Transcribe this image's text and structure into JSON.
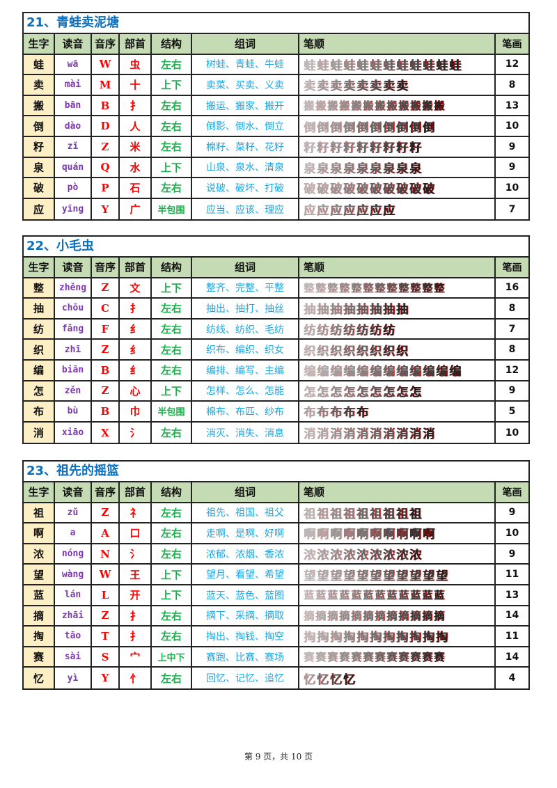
{
  "headers": [
    "生字",
    "读音",
    "音序",
    "部首",
    "结构",
    "组词",
    "笔顺",
    "笔画"
  ],
  "lessons": [
    {
      "title": "21、青蛙卖泥塘",
      "rows": [
        [
          "蛙",
          "wā",
          "W",
          "虫",
          "左右",
          "树蛙、青蛙、牛蛙",
          "12"
        ],
        [
          "卖",
          "mài",
          "M",
          "十",
          "上下",
          "卖菜、买卖、义卖",
          "8"
        ],
        [
          "搬",
          "bān",
          "B",
          "扌",
          "左右",
          "搬运、搬家、搬开",
          "13"
        ],
        [
          "倒",
          "dào",
          "D",
          "人",
          "左右",
          "倒影、倒水、倒立",
          "10"
        ],
        [
          "籽",
          "zǐ",
          "Z",
          "米",
          "左右",
          "棉籽、菜籽、花籽",
          "9"
        ],
        [
          "泉",
          "quán",
          "Q",
          "水",
          "上下",
          "山泉、泉水、清泉",
          "9"
        ],
        [
          "破",
          "pò",
          "P",
          "石",
          "左右",
          "说破、破坏、打破",
          "10"
        ],
        [
          "应",
          "yīng",
          "Y",
          "广",
          "半包围",
          "应当、应该、理应",
          "7"
        ]
      ]
    },
    {
      "title": "22、小毛虫",
      "rows": [
        [
          "整",
          "zhěng",
          "Z",
          "文",
          "上下",
          "整齐、完整、平整",
          "16"
        ],
        [
          "抽",
          "chōu",
          "C",
          "扌",
          "左右",
          "抽出、抽打、抽丝",
          "8"
        ],
        [
          "纺",
          "fǎng",
          "F",
          "纟",
          "左右",
          "纺线、纺织、毛纺",
          "7"
        ],
        [
          "织",
          "zhī",
          "Z",
          "纟",
          "左右",
          "织布、编织、织女",
          "8"
        ],
        [
          "编",
          "biān",
          "B",
          "纟",
          "左右",
          "编排、编写、主编",
          "12"
        ],
        [
          "怎",
          "zěn",
          "Z",
          "心",
          "上下",
          "怎样、怎么、怎能",
          "9"
        ],
        [
          "布",
          "bù",
          "B",
          "巾",
          "半包围",
          "棉布、布匹、纱布",
          "5"
        ],
        [
          "消",
          "xiāo",
          "X",
          "氵",
          "左右",
          "消灭、消失、消息",
          "10"
        ]
      ]
    },
    {
      "title": "23、祖先的摇篮",
      "rows": [
        [
          "祖",
          "zǔ",
          "Z",
          "礻",
          "左右",
          "祖先、祖国、祖父",
          "9"
        ],
        [
          "啊",
          "a",
          "A",
          "口",
          "左右",
          "走啊、是啊、好啊",
          "10"
        ],
        [
          "浓",
          "nóng",
          "N",
          "氵",
          "左右",
          "浓郁、浓烟、香浓",
          "9"
        ],
        [
          "望",
          "wàng",
          "W",
          "王",
          "上下",
          "望月、看望、希望",
          "11"
        ],
        [
          "蓝",
          "lán",
          "L",
          "开",
          "上下",
          "蓝天、蓝色、蓝图",
          "13"
        ],
        [
          "摘",
          "zhāi",
          "Z",
          "扌",
          "左右",
          "摘下、采摘、摘取",
          "14"
        ],
        [
          "掏",
          "tāo",
          "T",
          "扌",
          "左右",
          "掏出、掏钱、掏空",
          "11"
        ],
        [
          "赛",
          "sài",
          "S",
          "宀",
          "上中下",
          "赛跑、比赛、赛场",
          "14"
        ],
        [
          "忆",
          "yì",
          "Y",
          "忄",
          "左右",
          "回忆、记忆、追忆",
          "4"
        ]
      ]
    }
  ],
  "footer": "第 9 页，共 10 页"
}
